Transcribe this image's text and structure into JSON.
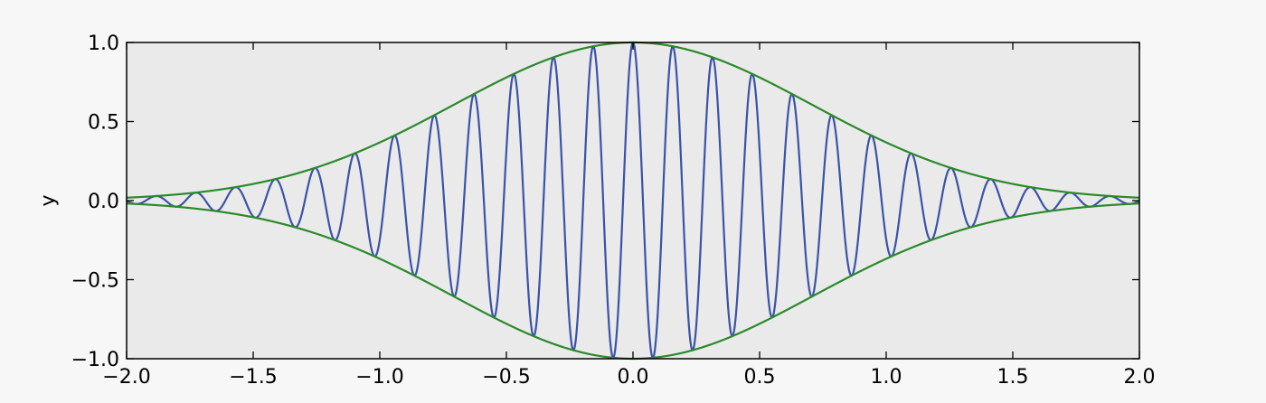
{
  "chart_data": {
    "type": "line",
    "title": "",
    "xlabel": "",
    "ylabel": "y",
    "xlim": [
      -2.0,
      2.0
    ],
    "ylim": [
      -1.0,
      1.0
    ],
    "grid": false,
    "legend": "none",
    "x_ticks": [
      "−2.0",
      "−1.5",
      "−1.0",
      "−0.5",
      "0.0",
      "0.5",
      "1.0",
      "1.5",
      "2.0"
    ],
    "y_ticks": [
      "−1.0",
      "−0.5",
      "0.0",
      "0.5",
      "1.0"
    ],
    "series": [
      {
        "function": "exp(-x^2) * cos(40*x)",
        "color": "#3a53a8"
      },
      {
        "function": "exp(-x^2)",
        "color": "#2a8a2a"
      },
      {
        "function": "-exp(-x^2)",
        "color": "#2a8a2a"
      }
    ],
    "colors": {
      "plot_background": "#eaeaea",
      "page_background": "#f7f7f7",
      "axes": "#000000"
    }
  }
}
